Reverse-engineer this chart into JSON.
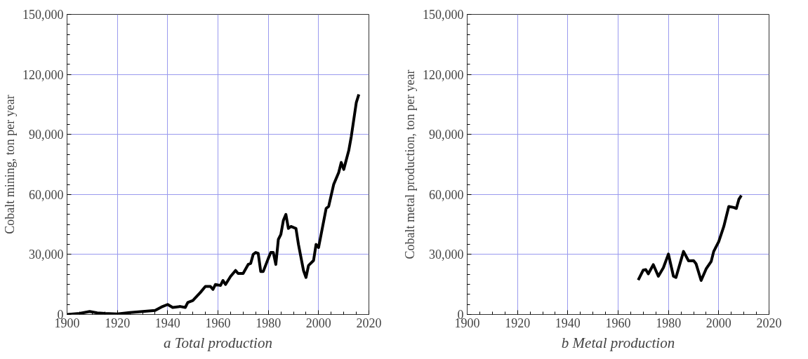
{
  "chart_data": [
    {
      "type": "line",
      "title": "a Total production",
      "ylabel": "Cobalt mining, ton per year",
      "xlim": [
        1900,
        2020
      ],
      "ylim": [
        0,
        150000
      ],
      "xticks": [
        1900,
        1920,
        1940,
        1960,
        1980,
        2000,
        2020
      ],
      "yticks": [
        {
          "value": 0,
          "label": "0"
        },
        {
          "value": 30000,
          "label": "30,000"
        },
        {
          "value": 60000,
          "label": "60,000"
        },
        {
          "value": 90000,
          "label": "90,000"
        },
        {
          "value": 120000,
          "label": "120,000"
        },
        {
          "value": 150000,
          "label": "150,000"
        }
      ],
      "grid": true,
      "marker": "none",
      "line_style": "solid",
      "series": [
        {
          "color": "#000000",
          "x": [
            1900,
            1905,
            1909,
            1912,
            1915,
            1920,
            1925,
            1930,
            1935,
            1938,
            1940,
            1942,
            1945,
            1947,
            1948,
            1950,
            1953,
            1955,
            1957,
            1958,
            1959,
            1961,
            1962,
            1963,
            1965,
            1967,
            1968,
            1970,
            1972,
            1973,
            1974,
            1975,
            1976,
            1977,
            1978,
            1980,
            1981,
            1982,
            1983,
            1984,
            1985,
            1986,
            1987,
            1988,
            1989,
            1991,
            1992,
            1994,
            1995,
            1996,
            1998,
            1999,
            2000,
            2001,
            2003,
            2004,
            2006,
            2008,
            2009,
            2010,
            2012,
            2013,
            2015,
            2016
          ],
          "values": [
            0,
            500,
            1500,
            800,
            500,
            300,
            1000,
            1500,
            2000,
            4000,
            5000,
            3500,
            4000,
            3500,
            6000,
            7000,
            11000,
            14000,
            14000,
            12500,
            15000,
            14500,
            17000,
            15000,
            19000,
            22000,
            20500,
            20500,
            25000,
            25500,
            30000,
            31000,
            30500,
            21500,
            21500,
            28000,
            31000,
            31000,
            25000,
            37500,
            40000,
            47000,
            50000,
            43000,
            44000,
            43000,
            35000,
            22000,
            18500,
            24500,
            27000,
            35000,
            33500,
            40000,
            53000,
            54000,
            65000,
            71000,
            76000,
            72500,
            82000,
            89000,
            106000,
            110000
          ]
        }
      ]
    },
    {
      "type": "line",
      "title": "b Metal production",
      "ylabel": "Cobalt metal production, ton per year",
      "xlim": [
        1900,
        2020
      ],
      "ylim": [
        0,
        150000
      ],
      "xticks": [
        1900,
        1920,
        1940,
        1960,
        1980,
        2000,
        2020
      ],
      "yticks": [
        {
          "value": 0,
          "label": "0"
        },
        {
          "value": 30000,
          "label": "30,000"
        },
        {
          "value": 60000,
          "label": "60,000"
        },
        {
          "value": 90000,
          "label": "90,000"
        },
        {
          "value": 120000,
          "label": "120,000"
        },
        {
          "value": 150000,
          "label": "150,000"
        }
      ],
      "grid": true,
      "marker": "none",
      "line_style": "solid",
      "series": [
        {
          "color": "#000000",
          "x": [
            1968,
            1970,
            1971,
            1972,
            1974,
            1976,
            1978,
            1980,
            1982,
            1983,
            1986,
            1988,
            1990,
            1991,
            1993,
            1995,
            1997,
            1998,
            2000,
            2002,
            2004,
            2006,
            2007,
            2008,
            2009
          ],
          "values": [
            17200,
            22200,
            22400,
            20300,
            24900,
            19100,
            23400,
            30200,
            19100,
            18500,
            31500,
            26800,
            26900,
            25300,
            17000,
            22800,
            26500,
            31500,
            36400,
            43900,
            54000,
            53500,
            53000,
            57500,
            59500
          ]
        }
      ]
    }
  ]
}
